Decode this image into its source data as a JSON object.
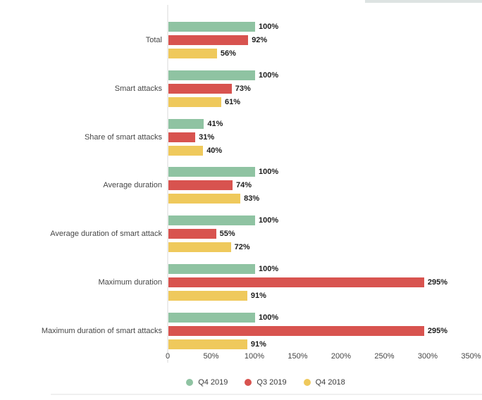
{
  "page": {
    "background_color": "#ffffff",
    "top_strip_color": "#dde3e2",
    "divider_color": "#efefef"
  },
  "chart_data": {
    "type": "bar",
    "orientation": "horizontal",
    "title": "",
    "xlabel": "",
    "ylabel": "",
    "xlim": [
      0,
      350
    ],
    "grid": false,
    "legend_position": "bottom",
    "value_suffix": "%",
    "categories": [
      "Total",
      "Smart attacks",
      "Share of smart attacks",
      "Average duration",
      "Average duration of smart attack",
      "Maximum duration",
      "Maximum duration of smart attacks"
    ],
    "series": [
      {
        "name": "Q4 2019",
        "color": "#8FC3A2",
        "values": [
          100,
          100,
          41,
          100,
          100,
          100,
          100
        ],
        "labels": [
          "100%",
          "100%",
          "41%",
          "100%",
          "100%",
          "100%",
          "100%"
        ]
      },
      {
        "name": "Q3 2019",
        "color": "#D8534F",
        "values": [
          92,
          73,
          31,
          74,
          55,
          295,
          295
        ],
        "labels": [
          "92%",
          "73%",
          "31%",
          "74%",
          "55%",
          "295%",
          "295%"
        ]
      },
      {
        "name": "Q4 2018",
        "color": "#EFC95C",
        "values": [
          56,
          61,
          40,
          83,
          72,
          91,
          91
        ],
        "labels": [
          "56%",
          "61%",
          "40%",
          "83%",
          "72%",
          "91%",
          "91%"
        ]
      }
    ],
    "x_ticks": [
      "0",
      "50%",
      "100%",
      "150%",
      "200%",
      "250%",
      "300%",
      "350%"
    ],
    "x_tick_values": [
      0,
      50,
      100,
      150,
      200,
      250,
      300,
      350
    ]
  }
}
